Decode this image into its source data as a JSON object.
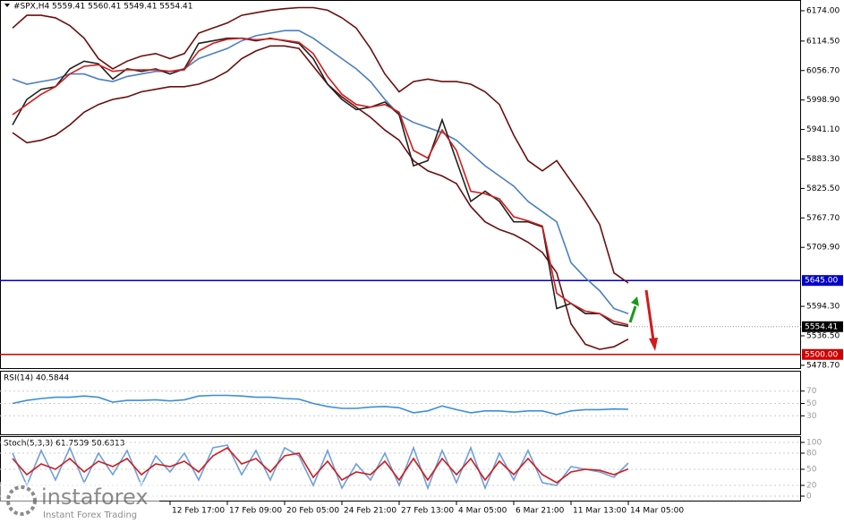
{
  "chart_data": [
    {
      "type": "line",
      "title": "#SPX,H4  5559.41 5560.41 5549.41 5554.41",
      "categories": [
        null,
        null,
        null,
        null,
        null,
        null,
        null,
        null,
        null,
        null,
        null,
        "12 Feb 17:00",
        null,
        null,
        null,
        "17 Feb 09:00",
        null,
        null,
        null,
        "20 Feb 05:00",
        null,
        null,
        null,
        "24 Feb 21:00",
        null,
        null,
        null,
        "27 Feb 13:00",
        null,
        null,
        null,
        "4 Mar 05:00",
        null,
        null,
        null,
        "6 Mar 21:00",
        null,
        null,
        null,
        "11 Mar 13:00",
        null,
        null,
        null,
        "14 Mar 05:00"
      ],
      "ylim": [
        5475,
        6195
      ],
      "yticks": [
        {
          "value": 6174,
          "label": "6174.00"
        },
        {
          "value": 6114.5,
          "label": "6114.50"
        },
        {
          "value": 6056.7,
          "label": "6056.70"
        },
        {
          "value": 5998.9,
          "label": "5998.90"
        },
        {
          "value": 5941.1,
          "label": "5941.10"
        },
        {
          "value": 5883.3,
          "label": "5883.30"
        },
        {
          "value": 5825.5,
          "label": "5825.50"
        },
        {
          "value": 5767.7,
          "label": "5767.70"
        },
        {
          "value": 5709.9,
          "label": "5709.90"
        },
        {
          "value": 5594.3,
          "label": "5594.30"
        },
        {
          "value": 5536.5,
          "label": "5536.50"
        },
        {
          "value": 5478.7,
          "label": "5478.70"
        }
      ],
      "hlines": [
        {
          "value": 5645,
          "label": "5645.00",
          "color": "#0000c8"
        },
        {
          "value": 5500,
          "label": "5500.00",
          "color": "#d00000"
        }
      ],
      "last_price": {
        "value": 5554.41,
        "label": "5554.41"
      },
      "series": [
        {
          "color": "#6b0f0f",
          "values": [
            6140,
            6165,
            6165,
            6160,
            6145,
            6120,
            6080,
            6060,
            6075,
            6085,
            6090,
            6080,
            6090,
            6130,
            6140,
            6150,
            6165,
            6170,
            6175,
            6178,
            6180,
            6180,
            6175,
            6160,
            6140,
            6100,
            6050,
            6015,
            6035,
            6040,
            6035,
            6035,
            6030,
            6015,
            5990,
            5930,
            5880,
            5860,
            5880,
            5840,
            5800,
            5755,
            5660,
            5640
          ]
        },
        {
          "color": "#6b0f0f",
          "values": [
            5935,
            5915,
            5920,
            5930,
            5950,
            5975,
            5990,
            6000,
            6005,
            6015,
            6020,
            6025,
            6025,
            6030,
            6040,
            6055,
            6080,
            6095,
            6105,
            6105,
            6100,
            6065,
            6030,
            6005,
            5985,
            5965,
            5940,
            5920,
            5880,
            5860,
            5850,
            5835,
            5790,
            5760,
            5745,
            5735,
            5720,
            5700,
            5660,
            5560,
            5520,
            5510,
            5515,
            5530
          ]
        },
        {
          "color": "#4a7fc4",
          "values": [
            6040,
            6030,
            6035,
            6040,
            6050,
            6050,
            6040,
            6035,
            6045,
            6050,
            6055,
            6055,
            6060,
            6080,
            6090,
            6100,
            6115,
            6125,
            6130,
            6135,
            6135,
            6120,
            6100,
            6080,
            6060,
            6035,
            6000,
            5970,
            5955,
            5945,
            5935,
            5920,
            5895,
            5870,
            5850,
            5830,
            5800,
            5780,
            5760,
            5680,
            5650,
            5625,
            5590,
            5580
          ]
        },
        {
          "color": "#222222",
          "values": [
            5950,
            6000,
            6020,
            6025,
            6060,
            6075,
            6070,
            6040,
            6060,
            6055,
            6060,
            6050,
            6060,
            6110,
            6115,
            6120,
            6120,
            6115,
            6120,
            6115,
            6110,
            6080,
            6030,
            6000,
            5980,
            5985,
            5995,
            5970,
            5870,
            5880,
            5960,
            5880,
            5800,
            5820,
            5800,
            5760,
            5760,
            5750,
            5590,
            5600,
            5580,
            5580,
            5560,
            5555
          ]
        },
        {
          "color": "#d01c1c",
          "values": [
            5970,
            5990,
            6010,
            6025,
            6050,
            6065,
            6068,
            6055,
            6058,
            6058,
            6058,
            6055,
            6058,
            6095,
            6110,
            6118,
            6120,
            6117,
            6119,
            6116,
            6112,
            6090,
            6045,
            6010,
            5990,
            5985,
            5990,
            5975,
            5900,
            5885,
            5940,
            5900,
            5820,
            5815,
            5805,
            5770,
            5762,
            5752,
            5620,
            5600,
            5585,
            5580,
            5565,
            5558
          ]
        }
      ]
    },
    {
      "type": "line",
      "title": "RSI(14) 40.5844",
      "ylim": [
        0,
        100
      ],
      "yticks": [
        70,
        50,
        30
      ],
      "series": [
        {
          "color": "#3d8fd6",
          "values": [
            50,
            55,
            58,
            60,
            60,
            62,
            60,
            52,
            55,
            55,
            56,
            54,
            56,
            62,
            63,
            63,
            62,
            60,
            60,
            58,
            57,
            50,
            45,
            42,
            42,
            44,
            45,
            43,
            35,
            38,
            46,
            40,
            35,
            38,
            38,
            36,
            38,
            38,
            32,
            38,
            40,
            40,
            41,
            40.58
          ]
        }
      ]
    },
    {
      "type": "line",
      "title": "Stoch(5,3,3) 61.7539 50.6313",
      "ylim": [
        0,
        100
      ],
      "yticks": [
        100,
        80,
        50,
        20,
        0
      ],
      "series": [
        {
          "color": "#6f9fdc",
          "values": [
            80,
            20,
            85,
            30,
            90,
            25,
            80,
            40,
            85,
            20,
            75,
            45,
            80,
            30,
            90,
            95,
            40,
            85,
            30,
            90,
            75,
            20,
            85,
            15,
            60,
            30,
            80,
            20,
            90,
            15,
            85,
            25,
            90,
            15,
            80,
            30,
            85,
            25,
            20,
            55,
            50,
            45,
            35,
            61.75
          ]
        },
        {
          "color": "#d01c1c",
          "values": [
            70,
            40,
            60,
            50,
            70,
            45,
            65,
            55,
            70,
            40,
            60,
            55,
            65,
            45,
            75,
            90,
            60,
            70,
            45,
            75,
            80,
            35,
            65,
            30,
            45,
            40,
            65,
            30,
            70,
            30,
            70,
            40,
            70,
            30,
            65,
            40,
            70,
            40,
            25,
            45,
            50,
            48,
            40,
            50.63
          ]
        }
      ]
    }
  ],
  "watermark": {
    "brand": "instaforex",
    "tagline": "Instant Forex Trading"
  }
}
